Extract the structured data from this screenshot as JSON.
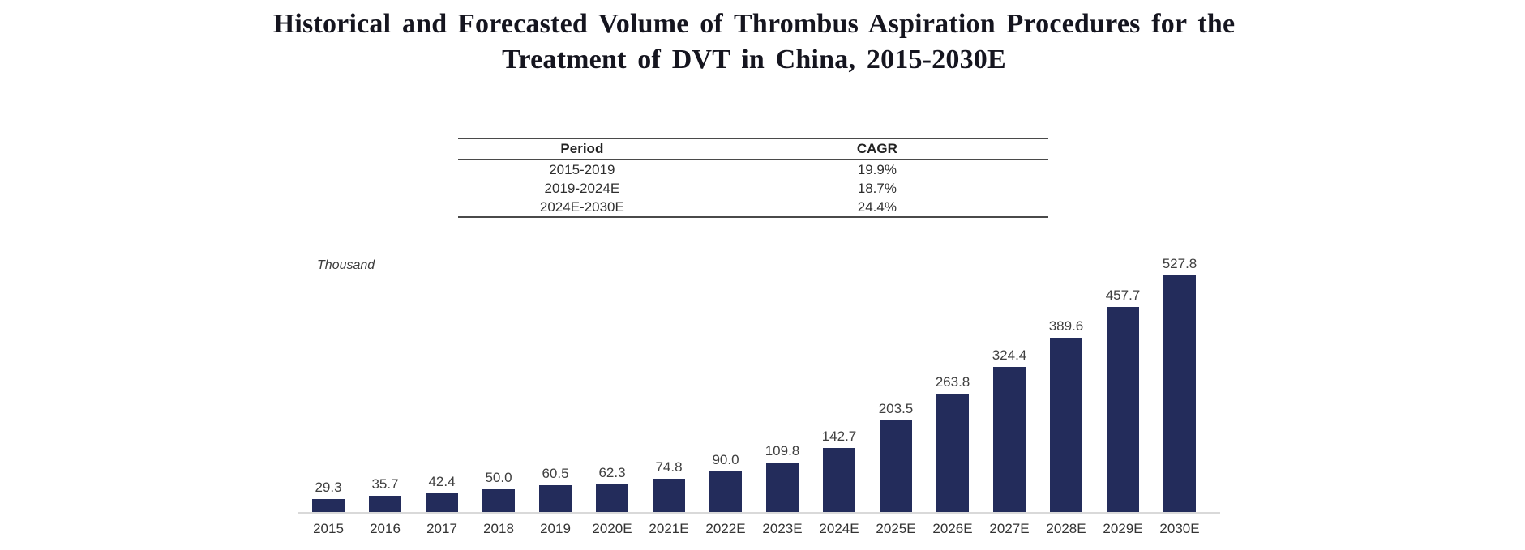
{
  "title": {
    "line1": "Historical and Forecasted Volume of Thrombus Aspiration Procedures for the",
    "line2": "Treatment of DVT in China, 2015-2030E"
  },
  "cagr_table": {
    "headers": [
      "Period",
      "CAGR"
    ],
    "rows": [
      {
        "period": "2015-2019",
        "cagr": "19.9%"
      },
      {
        "period": "2019-2024E",
        "cagr": "18.7%"
      },
      {
        "period": "2024E-2030E",
        "cagr": "24.4%"
      }
    ]
  },
  "chart": {
    "unit_label": "Thousand",
    "bar_color": "#232C5B",
    "value_label_color": "#3F3F3F",
    "tick_label_color": "#333333",
    "axis_color": "#D9D9D9"
  },
  "chart_data": {
    "type": "bar",
    "title": "Historical and Forecasted Volume of Thrombus Aspiration Procedures for the Treatment of DVT in China, 2015-2030E",
    "categories": [
      "2015",
      "2016",
      "2017",
      "2018",
      "2019",
      "2020E",
      "2021E",
      "2022E",
      "2023E",
      "2024E",
      "2025E",
      "2026E",
      "2027E",
      "2028E",
      "2029E",
      "2030E"
    ],
    "values": [
      29.3,
      35.7,
      42.4,
      50.0,
      60.5,
      62.3,
      74.8,
      90.0,
      109.8,
      142.7,
      203.5,
      263.8,
      324.4,
      389.6,
      457.7,
      527.8
    ],
    "xlabel": "",
    "ylabel": "Thousand",
    "ylim": [
      0,
      560
    ],
    "grid": false,
    "legend": false,
    "annotations": "value labeled above each bar, one decimal place"
  }
}
